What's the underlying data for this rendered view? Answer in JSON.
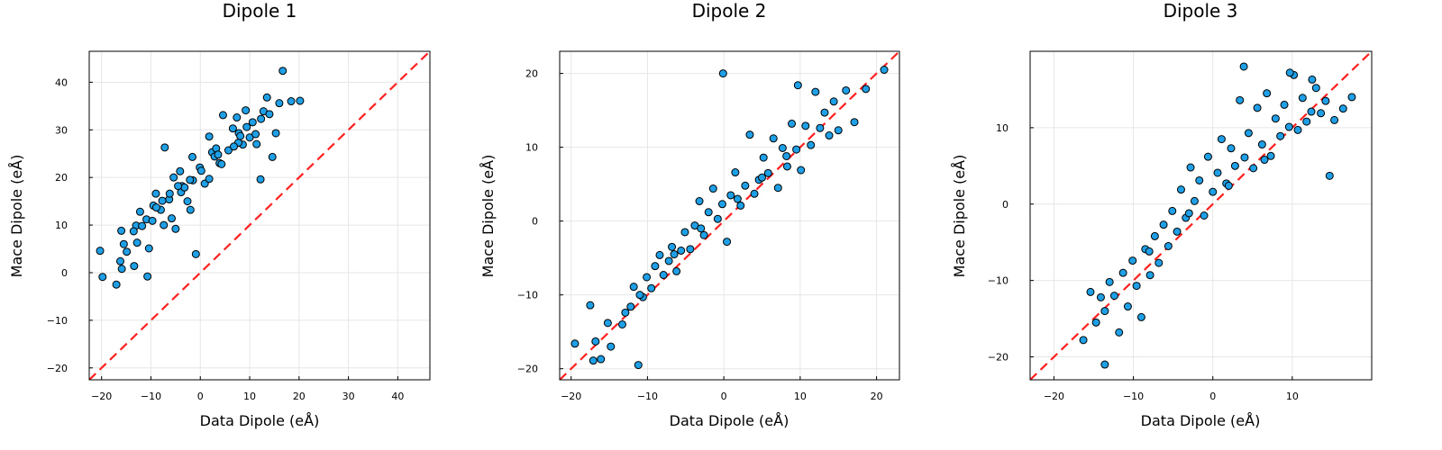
{
  "chart_data": [
    {
      "type": "scatter",
      "title": "Dipole 1",
      "xlabel": "Data Dipole (eÅ)",
      "ylabel": "Mace Dipole (eÅ)",
      "xlim": [
        -22.5,
        46.5
      ],
      "ylim": [
        -22.5,
        46.5
      ],
      "xticks": [
        -20,
        -10,
        0,
        10,
        20,
        30,
        40
      ],
      "yticks": [
        -20,
        -10,
        0,
        10,
        20,
        30,
        40
      ],
      "x_tick_labels": [
        "−20",
        "−10",
        "0",
        "10",
        "20",
        "30",
        "40"
      ],
      "y_tick_labels": [
        "−20",
        "−10",
        "0",
        "10",
        "20",
        "30",
        "40"
      ],
      "grid": true,
      "marker_color": "#1e9fe6",
      "reference_line": {
        "style": "dashed",
        "color": "#ff2020",
        "slope": 1,
        "intercept": 0
      },
      "x": [
        -20.3,
        -19.8,
        -17.0,
        -15.9,
        -16.2,
        -16.0,
        -15.5,
        -14.9,
        -13.4,
        -13.0,
        -12.2,
        -10.7,
        -10.4,
        -9.5,
        -9.0,
        -8.0,
        -7.4,
        -7.2,
        -6.3,
        -5.4,
        -5.0,
        -4.1,
        -3.7,
        -2.6,
        -2.0,
        -1.6,
        -1.5,
        -0.9,
        -0.1,
        0.9,
        1.8,
        2.4,
        3.2,
        3.9,
        4.6,
        5.7,
        6.6,
        7.4,
        7.8,
        8.6,
        9.2,
        10.0,
        10.6,
        11.4,
        12.2,
        12.8,
        13.5,
        14.6,
        15.3,
        16.0,
        16.7,
        18.4,
        20.2,
        -3.9,
        1.8,
        -5.8,
        12.3,
        14.0,
        -12.8,
        -10.9,
        -8.9,
        -6.2,
        -2.1,
        4.3,
        7.7,
        11.2,
        -13.5,
        -9.7,
        -3.2,
        2.9,
        6.8,
        9.4,
        -11.8,
        -7.7,
        -4.5,
        0.2,
        3.6,
        8.1
      ],
      "y": [
        4.6,
        -0.9,
        -2.5,
        0.8,
        2.4,
        8.8,
        6.0,
        4.4,
        1.4,
        9.9,
        12.8,
        -0.8,
        5.1,
        14.1,
        16.6,
        13.2,
        10.0,
        26.3,
        15.4,
        20.0,
        9.2,
        21.3,
        18.2,
        15.0,
        13.2,
        24.3,
        19.4,
        3.9,
        22.1,
        18.7,
        28.6,
        25.3,
        26.1,
        23.0,
        33.1,
        25.7,
        30.3,
        32.6,
        29.3,
        26.9,
        34.1,
        28.4,
        31.6,
        27.0,
        19.6,
        33.9,
        36.8,
        24.3,
        29.3,
        35.6,
        42.4,
        36.0,
        36.1,
        16.9,
        19.7,
        11.4,
        32.3,
        33.3,
        6.3,
        11.2,
        13.7,
        16.6,
        19.5,
        22.8,
        27.3,
        29.1,
        8.7,
        10.9,
        17.9,
        24.4,
        26.5,
        30.6,
        9.8,
        15.1,
        18.2,
        21.4,
        24.8,
        28.7
      ]
    },
    {
      "type": "scatter",
      "title": "Dipole 2",
      "xlabel": "Data Dipole (eÅ)",
      "ylabel": "Mace Dipole (eÅ)",
      "xlim": [
        -21.5,
        23.0
      ],
      "ylim": [
        -21.5,
        23.0
      ],
      "xticks": [
        -20,
        -10,
        0,
        10,
        20
      ],
      "yticks": [
        -20,
        -10,
        0,
        10,
        20
      ],
      "x_tick_labels": [
        "−20",
        "−10",
        "0",
        "10",
        "20"
      ],
      "y_tick_labels": [
        "−20",
        "−10",
        "0",
        "10",
        "20"
      ],
      "grid": true,
      "marker_color": "#1e9fe6",
      "reference_line": {
        "style": "dashed",
        "color": "#ff2020",
        "slope": 1,
        "intercept": 0
      },
      "x": [
        -19.5,
        -17.5,
        -17.1,
        -16.8,
        -16.1,
        -15.2,
        -14.8,
        -13.3,
        -12.9,
        -12.2,
        -11.8,
        -11.2,
        -10.6,
        -10.1,
        -9.5,
        -9.0,
        -8.4,
        -7.9,
        -7.2,
        -6.8,
        -6.2,
        -5.6,
        -5.1,
        -4.4,
        -3.8,
        -3.2,
        -2.6,
        -2.0,
        -1.4,
        -0.8,
        -0.2,
        0.4,
        0.9,
        1.5,
        2.2,
        2.8,
        3.4,
        4.0,
        4.6,
        5.2,
        5.8,
        6.5,
        7.1,
        7.7,
        8.3,
        8.9,
        9.5,
        10.1,
        10.7,
        11.4,
        12.0,
        12.6,
        13.2,
        13.8,
        14.4,
        15.0,
        16.0,
        17.1,
        18.6,
        21.0,
        -0.1,
        9.7,
        -11.0,
        -6.5,
        -3.0,
        1.8,
        5.0,
        8.2
      ],
      "y": [
        -16.6,
        -11.4,
        -18.9,
        -16.3,
        -18.7,
        -13.8,
        -17.0,
        -14.0,
        -12.4,
        -11.6,
        -8.9,
        -19.5,
        -10.3,
        -7.6,
        -9.1,
        -6.1,
        -4.6,
        -7.3,
        -5.4,
        -3.5,
        -6.8,
        -4.0,
        -1.5,
        -3.8,
        -0.6,
        2.7,
        -1.9,
        1.2,
        4.4,
        0.3,
        2.3,
        -2.8,
        3.5,
        6.6,
        2.1,
        4.8,
        11.7,
        3.7,
        5.6,
        8.6,
        6.5,
        11.2,
        4.5,
        9.9,
        7.4,
        13.2,
        9.7,
        6.9,
        12.9,
        10.3,
        17.5,
        12.6,
        14.7,
        11.6,
        16.2,
        12.3,
        17.7,
        13.4,
        17.9,
        20.5,
        20.0,
        18.4,
        -10.0,
        -4.5,
        -1.0,
        3.0,
        5.9,
        8.8
      ]
    },
    {
      "type": "scatter",
      "title": "Dipole 3",
      "xlabel": "Data Dipole (eÅ)",
      "ylabel": "Mace Dipole (eÅ)",
      "xlim": [
        -23.0,
        20.0
      ],
      "ylim": [
        -23.0,
        20.0
      ],
      "xticks": [
        -20,
        -10,
        0,
        10
      ],
      "yticks": [
        -20,
        -10,
        0,
        10
      ],
      "x_tick_labels": [
        "−20",
        "−10",
        "0",
        "10"
      ],
      "y_tick_labels": [
        "−20",
        "−10",
        "0",
        "10"
      ],
      "grid": true,
      "marker_color": "#1e9fe6",
      "reference_line": {
        "style": "dashed",
        "color": "#ff2020",
        "slope": 1,
        "intercept": 0
      },
      "x": [
        -16.3,
        -15.4,
        -14.7,
        -14.1,
        -13.6,
        -13.0,
        -12.4,
        -11.8,
        -11.3,
        -10.7,
        -10.1,
        -9.6,
        -9.0,
        -8.5,
        -7.9,
        -7.3,
        -6.8,
        -6.2,
        -5.6,
        -5.1,
        -4.5,
        -4.0,
        -3.4,
        -2.8,
        -2.3,
        -1.7,
        -1.1,
        -0.6,
        0.0,
        0.6,
        1.1,
        1.7,
        2.3,
        2.8,
        3.4,
        4.0,
        4.5,
        5.1,
        5.6,
        6.2,
        6.8,
        7.3,
        7.9,
        8.5,
        9.0,
        9.6,
        10.2,
        10.7,
        11.3,
        11.8,
        12.4,
        13.0,
        13.6,
        14.2,
        14.7,
        15.3,
        16.4,
        17.5,
        -13.6,
        3.9,
        9.7,
        12.5,
        -8.0,
        -3.0,
        2.0,
        6.5
      ],
      "y": [
        -17.8,
        -11.5,
        -15.5,
        -12.2,
        -14.0,
        -10.2,
        -12.0,
        -16.8,
        -9.0,
        -13.4,
        -7.4,
        -10.7,
        -14.8,
        -5.9,
        -9.3,
        -4.2,
        -7.7,
        -2.7,
        -5.5,
        -0.9,
        -3.6,
        1.9,
        -1.8,
        4.8,
        0.4,
        3.1,
        -1.5,
        6.2,
        1.6,
        4.1,
        8.5,
        2.7,
        7.3,
        5.0,
        13.6,
        6.1,
        9.3,
        4.7,
        12.6,
        7.8,
        14.5,
        6.3,
        11.2,
        8.9,
        13.0,
        10.1,
        16.9,
        9.7,
        13.9,
        10.8,
        12.1,
        15.2,
        11.9,
        13.5,
        3.7,
        11.0,
        12.5,
        14.0,
        -21.0,
        18.0,
        17.2,
        16.3,
        -6.2,
        -1.2,
        2.4,
        5.8
      ]
    }
  ]
}
